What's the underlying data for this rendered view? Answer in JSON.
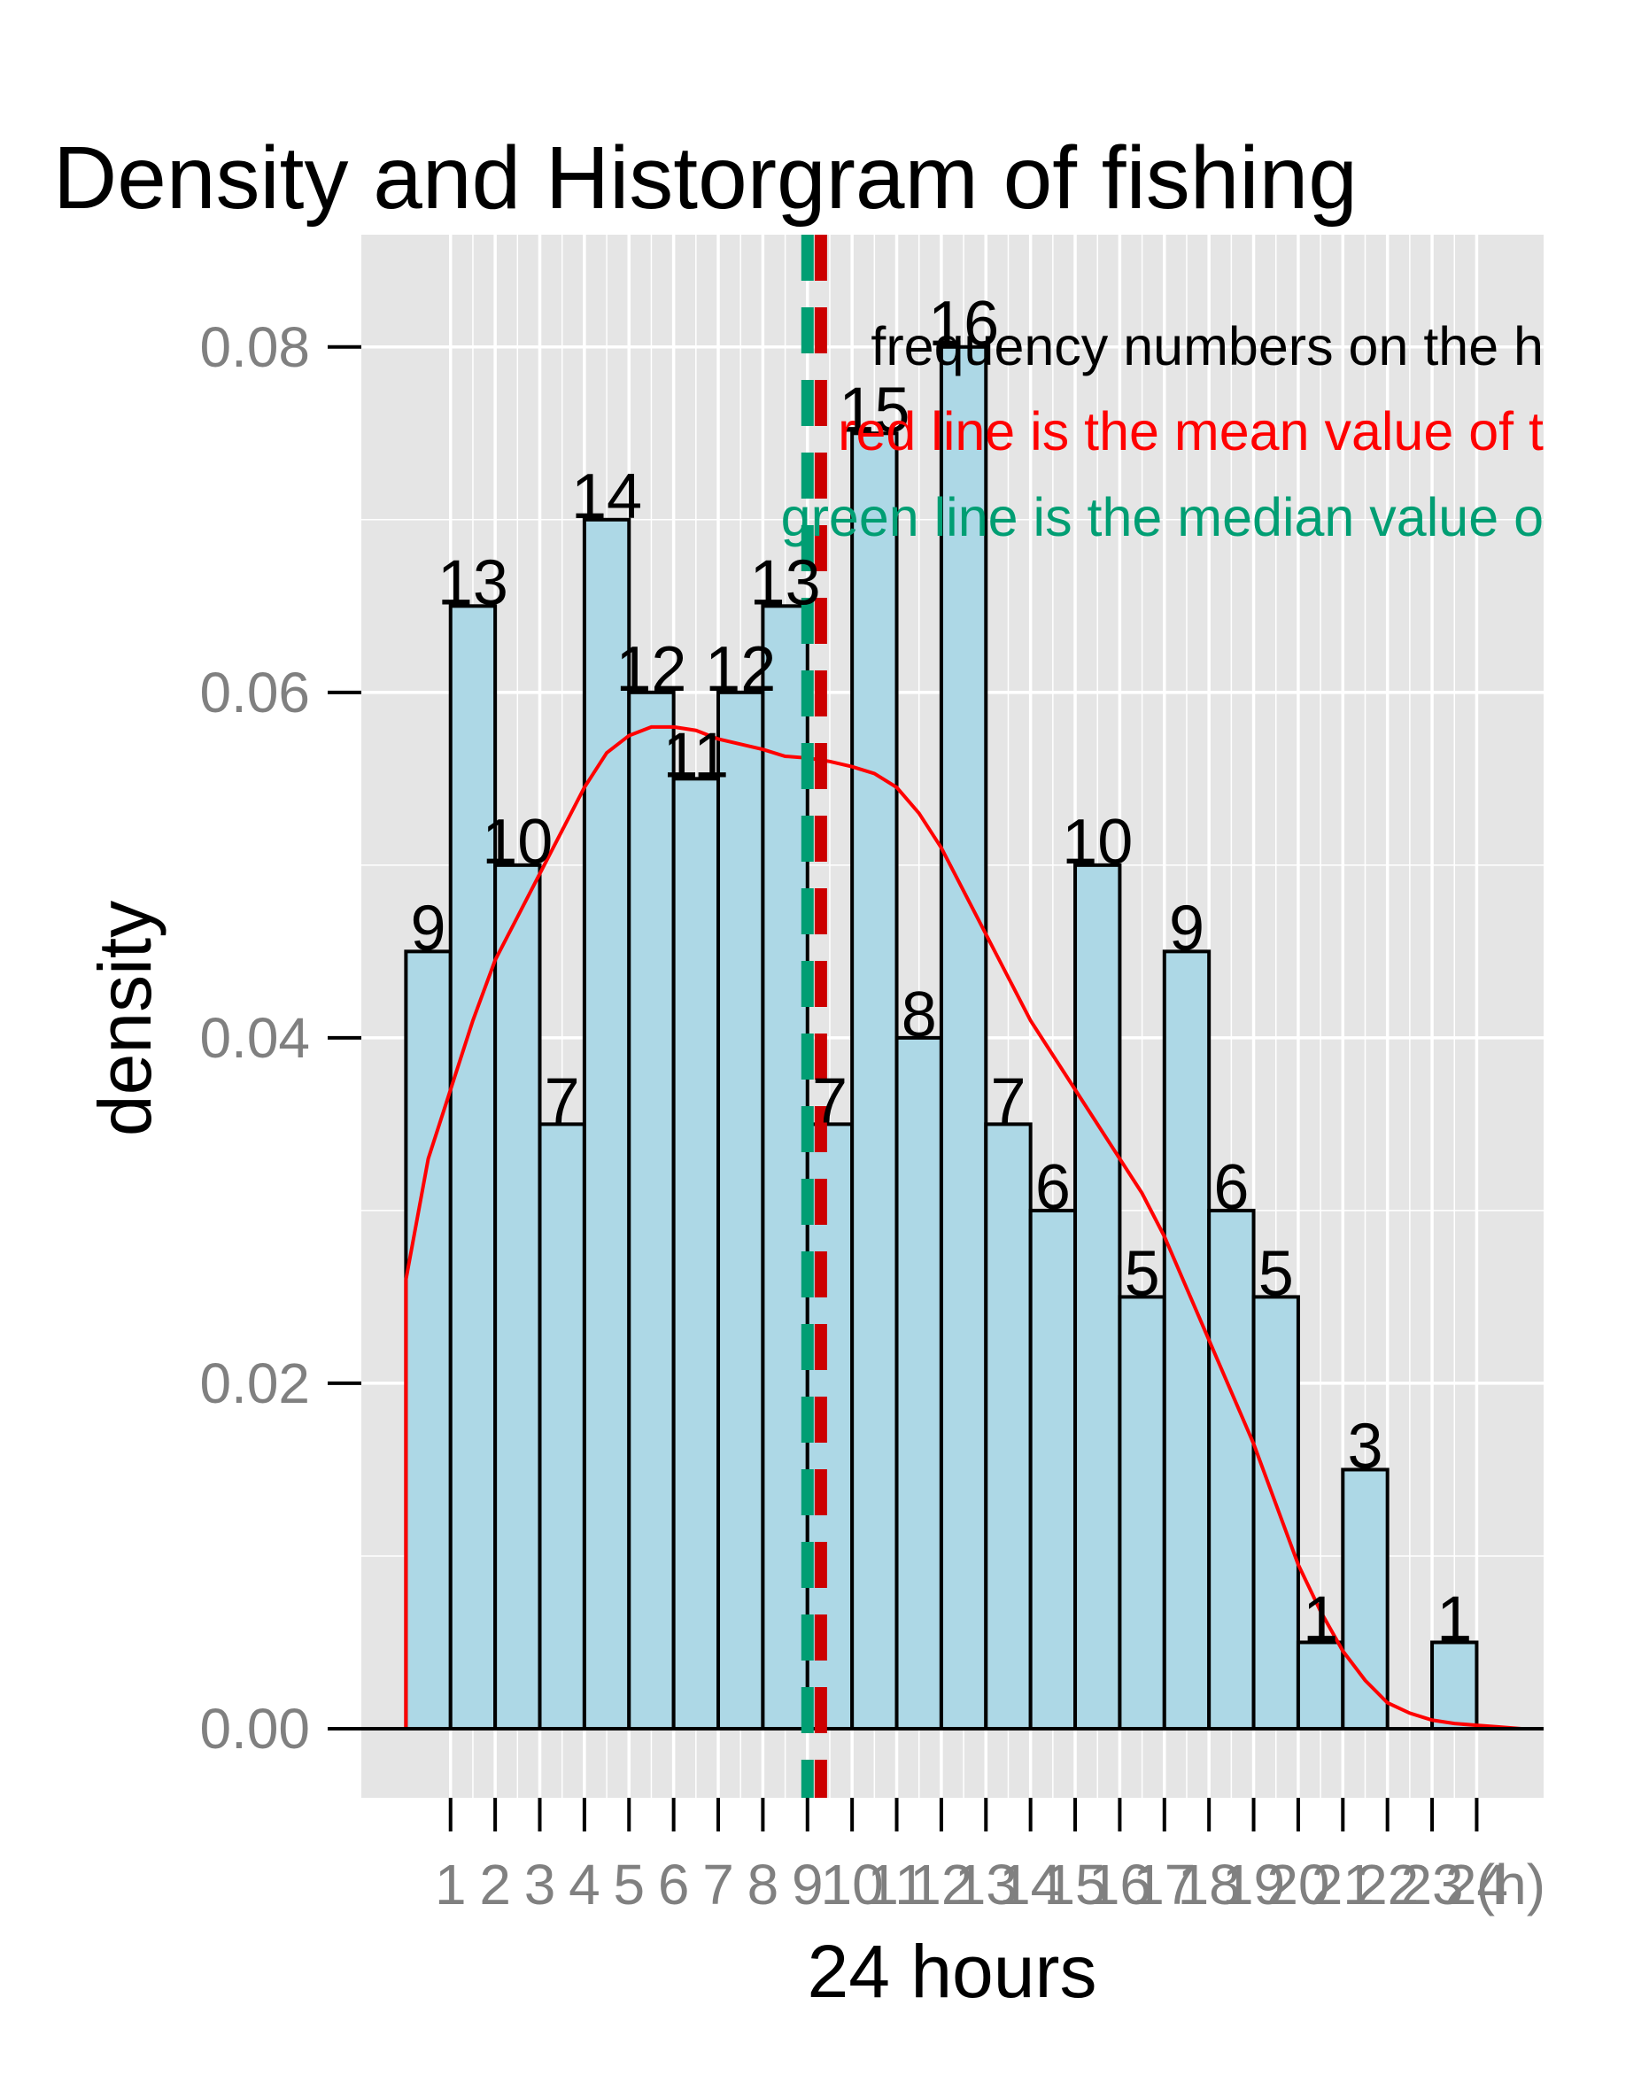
{
  "chart_data": {
    "type": "bar",
    "title": "Density and Historgram of fishing",
    "xlabel": "24 hours",
    "ylabel": "density",
    "x_unit_label": "(h)",
    "xlim": [
      -1,
      25.5
    ],
    "ylim": [
      -0.004,
      0.0865
    ],
    "y_ticks": [
      0.0,
      0.02,
      0.04,
      0.06,
      0.08
    ],
    "y_tick_labels": [
      "0.00",
      "0.02",
      "0.04",
      "0.06",
      "0.08"
    ],
    "x_ticks": [
      1,
      2,
      3,
      4,
      5,
      6,
      7,
      8,
      9,
      10,
      11,
      12,
      13,
      14,
      15,
      16,
      17,
      18,
      19,
      20,
      21,
      22,
      23,
      24
    ],
    "x_tick_labels": [
      "1",
      "2",
      "3",
      "4",
      "5",
      "6",
      "7",
      "8",
      "9",
      "10",
      "11",
      "12",
      "13",
      "14",
      "15",
      "16",
      "17",
      "18",
      "19",
      "20",
      "21",
      "22",
      "23",
      "24"
    ],
    "grid": true,
    "bar_width": 1,
    "bin_starts": [
      0,
      1,
      2,
      3,
      4,
      5,
      6,
      7,
      8,
      9,
      10,
      11,
      12,
      13,
      14,
      15,
      16,
      17,
      18,
      19,
      20,
      21,
      22,
      23
    ],
    "counts": [
      9,
      13,
      10,
      7,
      14,
      12,
      11,
      12,
      13,
      7,
      15,
      8,
      16,
      7,
      6,
      10,
      5,
      9,
      6,
      5,
      1,
      3,
      0,
      1
    ],
    "density": [
      0.045,
      0.065,
      0.05,
      0.035,
      0.07,
      0.06,
      0.055,
      0.06,
      0.065,
      0.035,
      0.075,
      0.04,
      0.08,
      0.035,
      0.03,
      0.05,
      0.025,
      0.045,
      0.03,
      0.025,
      0.005,
      0.015,
      0.0,
      0.005
    ],
    "density_curve": {
      "x": [
        0,
        0.5,
        1,
        1.5,
        2,
        2.5,
        3,
        3.5,
        4,
        4.5,
        5,
        5.5,
        6,
        6.5,
        7,
        7.5,
        8,
        8.5,
        9,
        9.5,
        10,
        10.5,
        11,
        11.5,
        12,
        12.5,
        13,
        13.5,
        14,
        14.5,
        15,
        15.5,
        16,
        16.5,
        17,
        17.5,
        18,
        18.5,
        19,
        19.5,
        20,
        20.5,
        21,
        21.5,
        22,
        22.5,
        23,
        23.5,
        24,
        24.5,
        25
      ],
      "y": [
        0.026,
        0.033,
        0.037,
        0.041,
        0.0445,
        0.047,
        0.0495,
        0.052,
        0.0545,
        0.0565,
        0.0575,
        0.058,
        0.058,
        0.0578,
        0.0573,
        0.057,
        0.0567,
        0.0563,
        0.0562,
        0.056,
        0.0557,
        0.0553,
        0.0545,
        0.053,
        0.051,
        0.0485,
        0.046,
        0.0435,
        0.041,
        0.039,
        0.037,
        0.035,
        0.033,
        0.031,
        0.0285,
        0.0255,
        0.0225,
        0.0195,
        0.0165,
        0.013,
        0.0095,
        0.0068,
        0.0045,
        0.0028,
        0.0015,
        0.0009,
        0.0005,
        0.0003,
        0.0002,
        0.0001,
        0.0
      ]
    },
    "mean_value": 9.3,
    "median_value": 9.0,
    "colors": {
      "panel_background": "#E5E5E5",
      "grid": "#FFFFFF",
      "bar_fill": "#ADD8E6",
      "bar_outline": "#000000",
      "density_line": "#FF0000",
      "mean_line": "#CC0000",
      "median_line": "#009E73",
      "tick_label": "#808080"
    },
    "annotations": [
      {
        "text": "frequency numbers on the h",
        "color": "#000000"
      },
      {
        "text": "red line is the mean value of t",
        "color": "#FF0000"
      },
      {
        "text": "green line is the median value o",
        "color": "#009E73"
      }
    ]
  }
}
